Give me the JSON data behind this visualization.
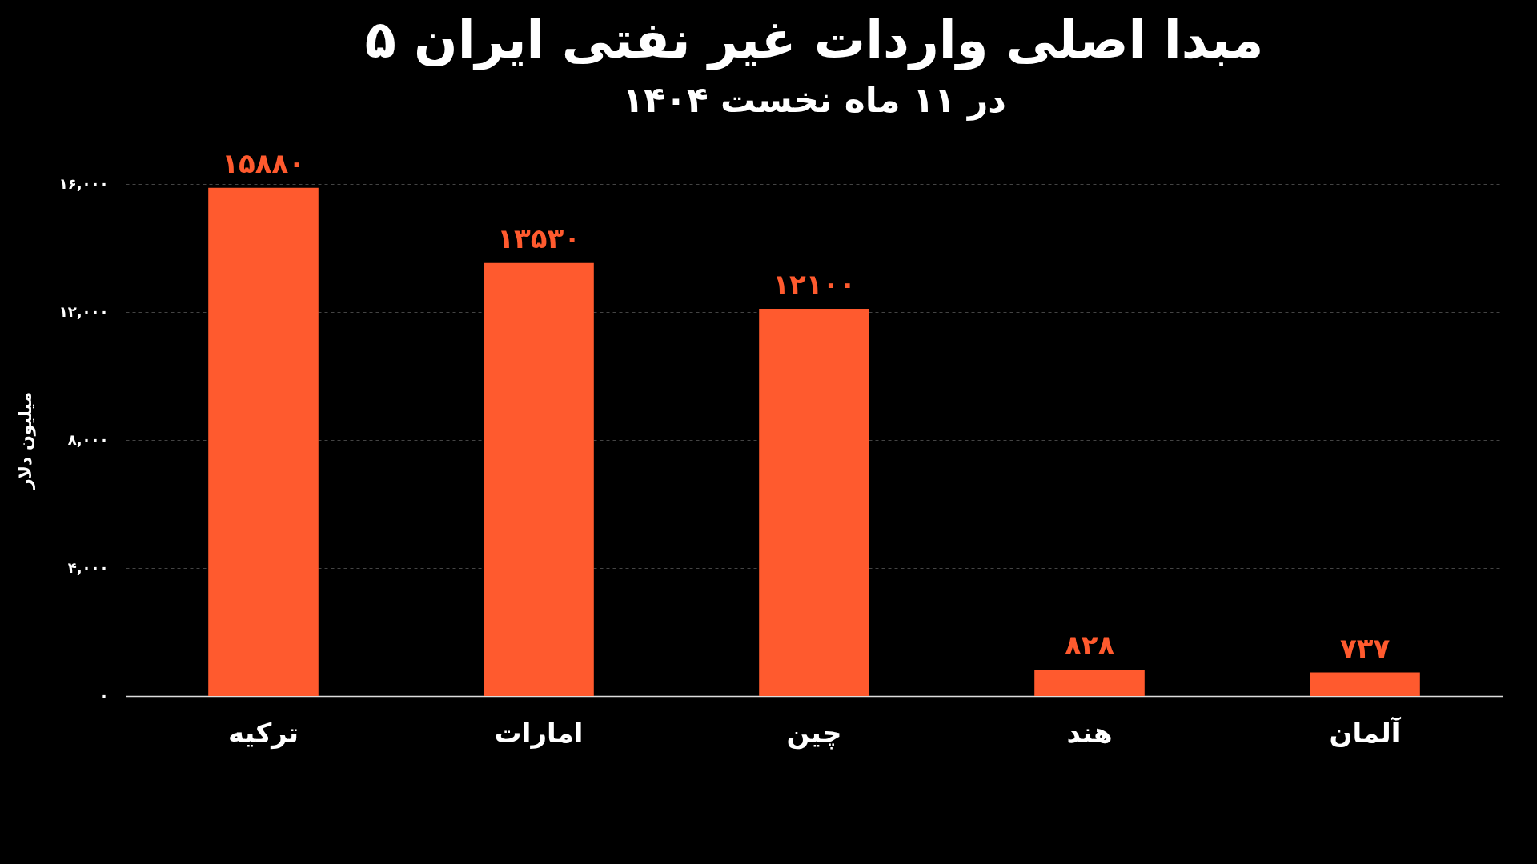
{
  "chart_data": {
    "type": "bar",
    "title": "۵ مبدا اصلی واردات غیر نفتی ایران",
    "subtitle": "در ۱۱ ماه نخست ۱۴۰۴",
    "ylabel": "میلیون دلار",
    "categories": [
      "ترکیه",
      "امارات",
      "چین",
      "هند",
      "آلمان"
    ],
    "values": [
      15880,
      13530,
      12100,
      828,
      737
    ],
    "value_labels": [
      "۱۵۸۸۰",
      "۱۳۵۳۰",
      "۱۲۱۰۰",
      "۸۲۸",
      "۷۳۷"
    ],
    "color": "#ff5a2e",
    "ylim": [
      0,
      16000
    ],
    "yticks": [
      {
        "value": 0,
        "label": "۰"
      },
      {
        "value": 4000,
        "label": "۴,۰۰۰"
      },
      {
        "value": 8000,
        "label": "۸,۰۰۰"
      },
      {
        "value": 12000,
        "label": "۱۲,۰۰۰"
      },
      {
        "value": 16000,
        "label": "۱۶,۰۰۰"
      }
    ],
    "grid": "y"
  }
}
